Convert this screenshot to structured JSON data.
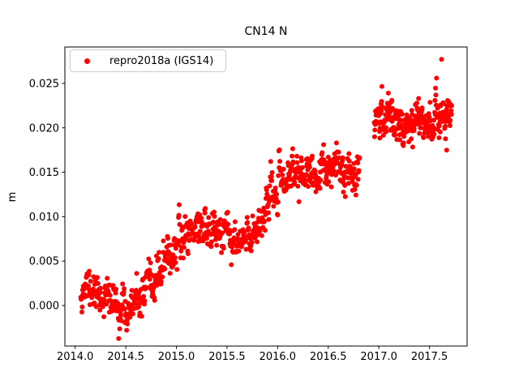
{
  "figure": {
    "background": "#ffffff"
  },
  "chart_data": {
    "type": "scatter",
    "title": "CN14 N",
    "xlabel": "",
    "ylabel": "m",
    "xlim": [
      2013.898,
      2017.872
    ],
    "ylim": [
      -0.00456,
      0.0291
    ],
    "xticks": [
      2014.0,
      2014.5,
      2015.0,
      2015.5,
      2016.0,
      2016.5,
      2017.0,
      2017.5
    ],
    "xtick_labels": [
      "2014.0",
      "2014.5",
      "2015.0",
      "2015.5",
      "2016.0",
      "2016.5",
      "2017.0",
      "2017.5"
    ],
    "yticks": [
      0.0,
      0.005,
      0.01,
      0.015,
      0.02,
      0.025
    ],
    "ytick_labels": [
      "0.000",
      "0.005",
      "0.010",
      "0.015",
      "0.020",
      "0.025"
    ],
    "grid": false,
    "axis_color": "#000000",
    "text_color": "#000000",
    "legend": {
      "label": "repro2018a (IGS14)",
      "position": "upper-left",
      "marker_color": "#ff0000",
      "border_color": "#cccccc"
    },
    "series": [
      {
        "name": "repro2018a (IGS14)",
        "color": "#ff0000",
        "marker": "dot",
        "marker_radius_px": 3,
        "seed": 11,
        "noise_ar": 0.45,
        "trend_anchors": [
          [
            2014.05,
            0.0021
          ],
          [
            2014.12,
            0.002
          ],
          [
            2014.22,
            0.0016
          ],
          [
            2014.32,
            0.0008
          ],
          [
            2014.42,
            -0.0002
          ],
          [
            2014.5,
            -0.0006
          ],
          [
            2014.58,
            -0.0002
          ],
          [
            2014.68,
            0.001
          ],
          [
            2014.78,
            0.0028
          ],
          [
            2014.88,
            0.0046
          ],
          [
            2015.0,
            0.0066
          ],
          [
            2015.1,
            0.0082
          ],
          [
            2015.22,
            0.0089
          ],
          [
            2015.35,
            0.0086
          ],
          [
            2015.48,
            0.0079
          ],
          [
            2015.6,
            0.0068
          ],
          [
            2015.72,
            0.0075
          ],
          [
            2015.82,
            0.0096
          ],
          [
            2015.92,
            0.0118
          ],
          [
            2016.02,
            0.0133
          ],
          [
            2016.12,
            0.0149
          ],
          [
            2016.22,
            0.015
          ],
          [
            2016.32,
            0.0143
          ],
          [
            2016.45,
            0.0149
          ],
          [
            2016.58,
            0.0153
          ],
          [
            2016.7,
            0.015
          ],
          [
            2016.81,
            0.016
          ],
          [
            2016.96,
            0.0213
          ],
          [
            2017.1,
            0.0213
          ],
          [
            2017.25,
            0.0206
          ],
          [
            2017.4,
            0.0211
          ],
          [
            2017.55,
            0.0209
          ],
          [
            2017.65,
            0.0216
          ],
          [
            2017.72,
            0.0214
          ]
        ],
        "segments": [
          {
            "x_start": 2014.055,
            "x_end": 2016.81,
            "n": 760,
            "noise_std": 0.00115
          },
          {
            "x_start": 2016.955,
            "x_end": 2017.72,
            "n": 265,
            "noise_std": 0.00115
          }
        ],
        "extra_points": [
          [
            2017.57,
            0.0256
          ],
          [
            2017.62,
            0.0277
          ],
          [
            2017.67,
            0.0175
          ]
        ]
      }
    ]
  }
}
